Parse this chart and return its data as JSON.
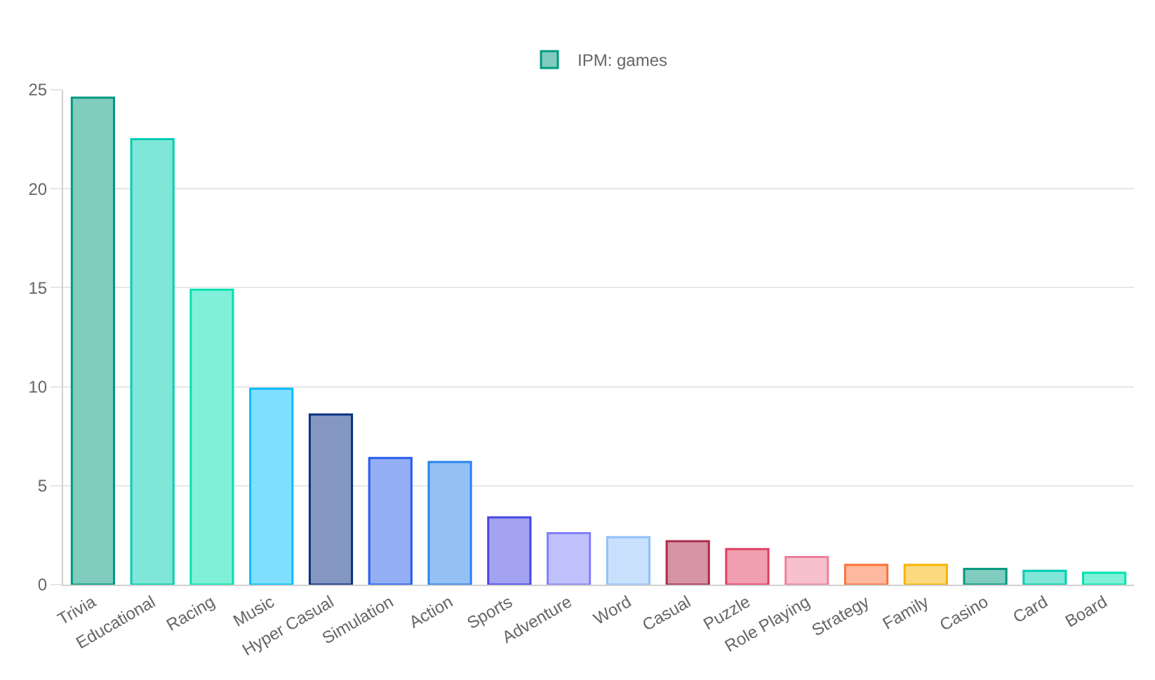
{
  "chart_data": {
    "type": "bar",
    "categories": [
      "Trivia",
      "Educational",
      "Racing",
      "Music",
      "Hyper Casual",
      "Simulation",
      "Action",
      "Sports",
      "Adventure",
      "Word",
      "Casual",
      "Puzzle",
      "Role Playing",
      "Strategy",
      "Family",
      "Casino",
      "Card",
      "Board"
    ],
    "series": [
      {
        "name": "IPM: games",
        "values": [
          24.6,
          22.5,
          14.9,
          9.9,
          8.6,
          6.4,
          6.2,
          3.4,
          2.6,
          2.4,
          2.2,
          1.8,
          1.4,
          1.0,
          1.0,
          0.8,
          0.7,
          0.6
        ],
        "colors": [
          "#80ccbf",
          "#80e6d8",
          "#80f0d8",
          "#80dfff",
          "#8497c0",
          "#93aef5",
          "#94c1f5",
          "#a3a3f2",
          "#c0c0fb",
          "#c8e0fc",
          "#d595a4",
          "#f09fb0",
          "#f6c0cc",
          "#fdb99d",
          "#fcd97f",
          "#80ccbf",
          "#80e6d8",
          "#80f0d8"
        ]
      }
    ],
    "ylim": [
      0,
      25
    ],
    "yticks": [
      0,
      5,
      10,
      15,
      20,
      25
    ],
    "grid": "y",
    "legend": "top"
  }
}
